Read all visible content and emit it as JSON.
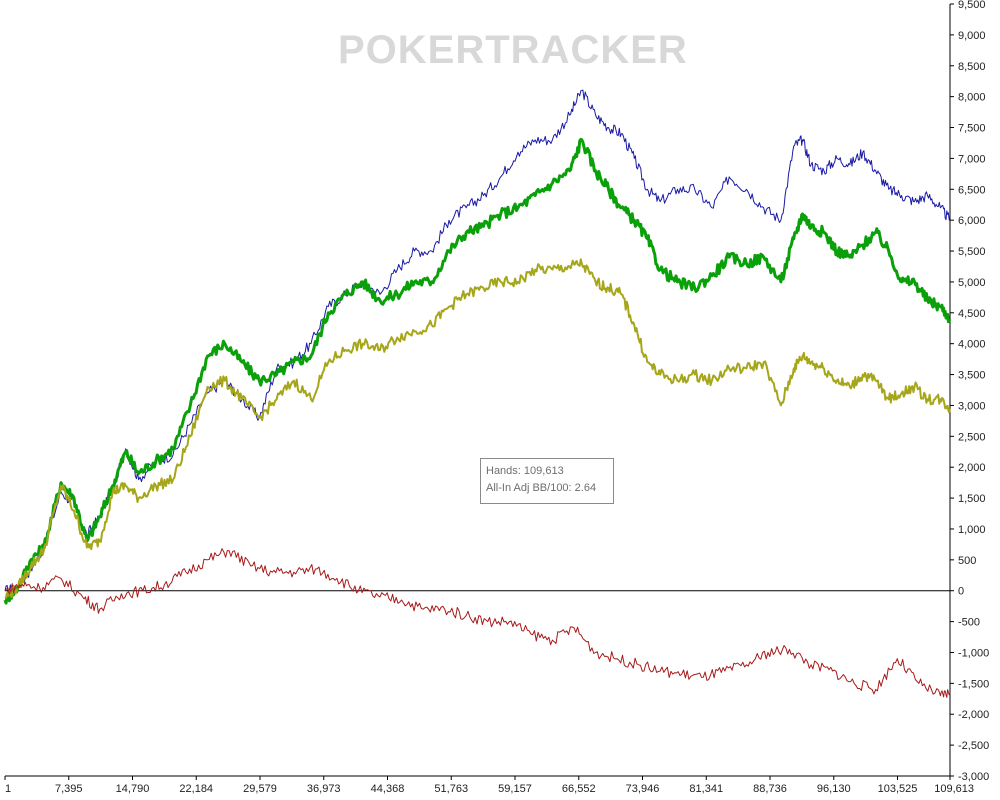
{
  "watermark": "POKERTRACKER",
  "tooltip": {
    "hands_label": "Hands:",
    "hands_value": "109,613",
    "bb_label": "All-In Adj BB/100:",
    "bb_value": "2.64"
  },
  "colors": {
    "allin_adj": "#1a1aa6",
    "net_won": "#0aa00a",
    "showdown": "#a6a61a",
    "non_showdown": "#a61a1a"
  },
  "chart_data": {
    "type": "line",
    "title": "",
    "xlabel": "",
    "ylabel": "",
    "x_tick_labels": [
      "1",
      "7,395",
      "14,790",
      "22,184",
      "29,579",
      "36,973",
      "44,368",
      "51,763",
      "59,157",
      "66,552",
      "73,946",
      "81,341",
      "88,736",
      "96,130",
      "103,525",
      "109,613"
    ],
    "y_tick_labels": [
      "9,500",
      "9,000",
      "8,500",
      "8,000",
      "7,500",
      "7,000",
      "6,500",
      "6,000",
      "5,500",
      "5,000",
      "4,500",
      "4,000",
      "3,500",
      "3,000",
      "2,500",
      "2,000",
      "1,500",
      "1,000",
      "500",
      "0",
      "-500",
      "-1,000",
      "-1,500",
      "-2,000",
      "-2,500",
      "-3,000"
    ],
    "xlim": [
      1,
      109613
    ],
    "ylim": [
      -3000,
      9500
    ],
    "y_axis_side": "right",
    "grid": false,
    "legend": "none",
    "series": [
      {
        "color": "#1a1aa6",
        "width": 1,
        "x": [
          1,
          1500,
          3000,
          4500,
          6500,
          8000,
          9500,
          11000,
          12500,
          14000,
          15500,
          17500,
          19500,
          21500,
          23500,
          25500,
          27500,
          29500,
          31500,
          33500,
          35500,
          37500,
          39500,
          41500,
          43500,
          45500,
          47500,
          49500,
          51500,
          53500,
          55500,
          57500,
          59500,
          61500,
          63500,
          65500,
          66900,
          68500,
          70000,
          71500,
          73000,
          74500,
          76000,
          78000,
          80000,
          82000,
          84000,
          86000,
          88000,
          90000,
          91500,
          92500,
          93500,
          95000,
          96500,
          98000,
          99500,
          101000,
          102500,
          104000,
          105500,
          107000,
          108500,
          109613
        ],
        "y": [
          0,
          50,
          350,
          700,
          1600,
          1400,
          900,
          1200,
          1650,
          2300,
          1800,
          2100,
          2200,
          2700,
          3200,
          3400,
          3100,
          2800,
          3600,
          3700,
          4000,
          4600,
          4800,
          5000,
          4800,
          5200,
          5500,
          5500,
          6000,
          6200,
          6400,
          6700,
          7100,
          7300,
          7300,
          7700,
          8100,
          7700,
          7500,
          7400,
          7000,
          6500,
          6300,
          6500,
          6500,
          6200,
          6700,
          6500,
          6200,
          6000,
          7200,
          7300,
          6900,
          6800,
          7000,
          6900,
          7100,
          6800,
          6500,
          6400,
          6300,
          6400,
          6200,
          6000
        ]
      },
      {
        "color": "#0aa00a",
        "width": 3,
        "x": [
          1,
          1500,
          3000,
          4500,
          6500,
          8000,
          9500,
          11000,
          12500,
          14000,
          15500,
          17500,
          19500,
          21500,
          23500,
          25500,
          27500,
          29500,
          31500,
          33500,
          35500,
          37500,
          39500,
          41500,
          43500,
          45500,
          47500,
          49500,
          51500,
          53500,
          55500,
          57500,
          59500,
          61500,
          63500,
          65500,
          66900,
          68500,
          70000,
          71500,
          73000,
          74500,
          76000,
          78000,
          80000,
          82000,
          84000,
          86000,
          88000,
          90000,
          91500,
          92500,
          93500,
          95000,
          96500,
          98000,
          99500,
          101000,
          102500,
          104000,
          105500,
          107000,
          108500,
          109613
        ],
        "y": [
          -150,
          50,
          500,
          700,
          1750,
          1500,
          800,
          1200,
          1700,
          2250,
          1900,
          2100,
          2300,
          3000,
          3800,
          4000,
          3700,
          3400,
          3500,
          3700,
          3800,
          4500,
          4800,
          5000,
          4700,
          4800,
          5000,
          5000,
          5500,
          5800,
          5900,
          6100,
          6200,
          6400,
          6600,
          6800,
          7300,
          6800,
          6500,
          6200,
          6000,
          5700,
          5200,
          5000,
          4900,
          5100,
          5400,
          5300,
          5400,
          5000,
          5700,
          6100,
          5900,
          5800,
          5500,
          5400,
          5600,
          5800,
          5500,
          5000,
          5000,
          4700,
          4600,
          4400
        ]
      },
      {
        "color": "#a6a61a",
        "width": 2,
        "x": [
          1,
          1500,
          3000,
          4500,
          6500,
          8000,
          9500,
          11000,
          12500,
          14000,
          15500,
          17500,
          19500,
          21500,
          23500,
          25500,
          27500,
          29500,
          31500,
          33500,
          35500,
          37500,
          39500,
          41500,
          43500,
          45500,
          47500,
          49500,
          51500,
          53500,
          55500,
          57500,
          59500,
          61500,
          63500,
          65500,
          66900,
          68500,
          70000,
          71500,
          73000,
          74500,
          76000,
          78000,
          80000,
          82000,
          84000,
          86000,
          88000,
          90000,
          91500,
          92500,
          93500,
          95000,
          96500,
          98000,
          99500,
          101000,
          102500,
          104000,
          105500,
          107000,
          108500,
          109613
        ],
        "y": [
          -100,
          50,
          400,
          650,
          1700,
          1300,
          700,
          800,
          1600,
          1700,
          1500,
          1700,
          1800,
          2500,
          3300,
          3400,
          3100,
          2800,
          3100,
          3400,
          3100,
          3700,
          3900,
          4000,
          3900,
          4100,
          4200,
          4300,
          4600,
          4800,
          4900,
          5000,
          5000,
          5200,
          5200,
          5250,
          5300,
          5000,
          4900,
          4800,
          4300,
          3700,
          3500,
          3400,
          3500,
          3400,
          3600,
          3600,
          3700,
          3000,
          3600,
          3800,
          3700,
          3600,
          3400,
          3300,
          3500,
          3400,
          3100,
          3200,
          3300,
          3100,
          3100,
          2950
        ]
      },
      {
        "color": "#a61a1a",
        "width": 1,
        "x": [
          1,
          2000,
          4000,
          6500,
          9000,
          11000,
          13500,
          16000,
          18500,
          21000,
          23500,
          26000,
          28500,
          31000,
          33500,
          36000,
          38500,
          41000,
          43500,
          46000,
          48500,
          51000,
          53500,
          56000,
          58500,
          61000,
          63500,
          66000,
          68500,
          71000,
          73500,
          76000,
          78500,
          81000,
          83500,
          86000,
          88500,
          91000,
          93500,
          96000,
          98500,
          101000,
          103500,
          106000,
          108500,
          109613
        ],
        "y": [
          0,
          100,
          50,
          200,
          -100,
          -300,
          -50,
          0,
          100,
          300,
          500,
          650,
          400,
          300,
          300,
          350,
          200,
          0,
          -100,
          -150,
          -300,
          -300,
          -400,
          -500,
          -500,
          -700,
          -800,
          -600,
          -1000,
          -1100,
          -1200,
          -1300,
          -1350,
          -1400,
          -1300,
          -1200,
          -1000,
          -950,
          -1200,
          -1300,
          -1500,
          -1600,
          -1100,
          -1500,
          -1700,
          -1650
        ]
      }
    ]
  }
}
